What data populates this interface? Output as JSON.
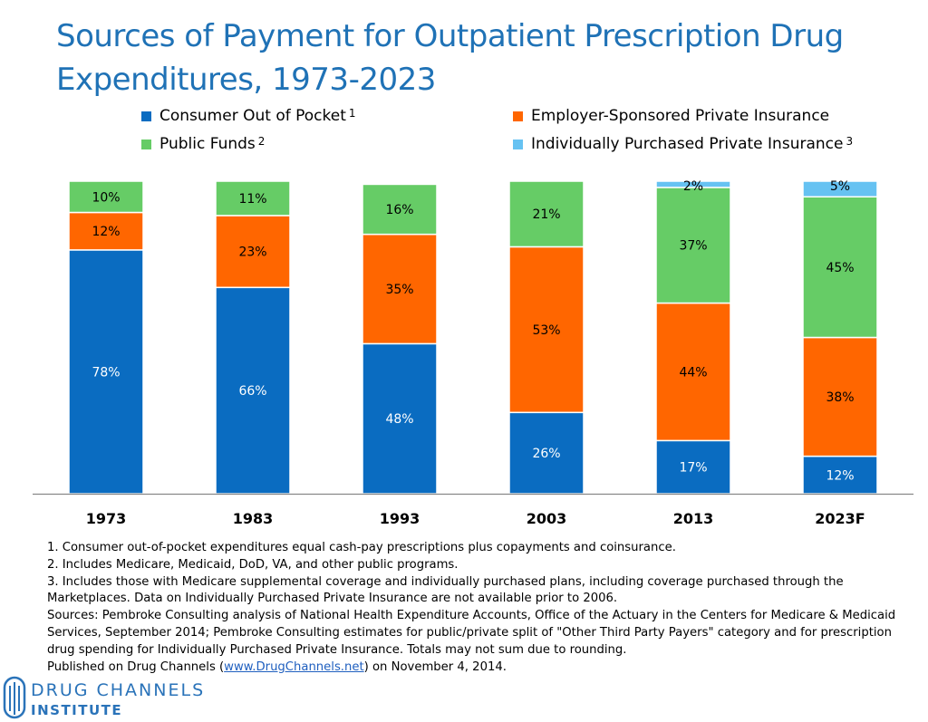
{
  "title_line1": "Sources of Payment for Outpatient Prescription Drug",
  "title_line2": "Expenditures, 1973-2023",
  "legend": [
    {
      "label": "Consumer Out of Pocket",
      "sup": "1",
      "color": "#0a6cc1"
    },
    {
      "label": "Employer-Sponsored Private Insurance",
      "sup": "",
      "color": "#ff6600"
    },
    {
      "label": "Public Funds",
      "sup": "2",
      "color": "#66cc66"
    },
    {
      "label": "Individually Purchased Private Insurance",
      "sup": "3",
      "color": "#66c2f2"
    }
  ],
  "chart_data": {
    "type": "bar",
    "stacked": true,
    "categories": [
      "1973",
      "1983",
      "1993",
      "2003",
      "2013",
      "2023F"
    ],
    "series": [
      {
        "name": "Consumer Out of Pocket",
        "color": "#0a6cc1",
        "values": [
          78,
          66,
          48,
          26,
          17,
          12
        ],
        "labels": [
          "78%",
          "66%",
          "48%",
          "26%",
          "17%",
          "12%"
        ]
      },
      {
        "name": "Employer-Sponsored Private Insurance",
        "color": "#ff6600",
        "values": [
          12,
          23,
          35,
          53,
          44,
          38
        ],
        "labels": [
          "12%",
          "23%",
          "35%",
          "53%",
          "44%",
          "38%"
        ]
      },
      {
        "name": "Public Funds",
        "color": "#66cc66",
        "values": [
          10,
          11,
          16,
          21,
          37,
          45
        ],
        "labels": [
          "10%",
          "11%",
          "16%",
          "21%",
          "37%",
          "45%"
        ]
      },
      {
        "name": "Individually Purchased Private Insurance",
        "color": "#66c2f2",
        "values": [
          0,
          0,
          0,
          0,
          2,
          5
        ],
        "labels": [
          "",
          "",
          "",
          "",
          "2%",
          "5%"
        ]
      }
    ],
    "ylim": [
      0,
      100
    ],
    "grid": false,
    "legend_position": "top"
  },
  "footnotes": [
    "1. Consumer out-of-pocket expenditures equal cash-pay prescriptions plus copayments and coinsurance.",
    "2. Includes Medicare, Medicaid, DoD, VA, and other public programs.",
    "3. Includes those with Medicare supplemental coverage and individually purchased plans, including coverage purchased through the",
    "Marketplaces. Data on Individually Purchased Private Insurance are not available prior to 2006.",
    "Sources: Pembroke Consulting analysis of National Health Expenditure Accounts, Office of the Actuary in the Centers for Medicare & Medicaid",
    "Services, September 2014; Pembroke Consulting estimates for public/private split of \"Other Third Party Payers\" category and for prescription",
    "drug spending for Individually Purchased Private Insurance. Totals may not sum due to rounding."
  ],
  "published": {
    "prefix": "Published on Drug Channels (",
    "link": "www.DrugChannels.net",
    "suffix": ") on November 4, 2014."
  },
  "logo": {
    "line1": "DRUG CHANNELS",
    "line2": "INSTITUTE"
  }
}
